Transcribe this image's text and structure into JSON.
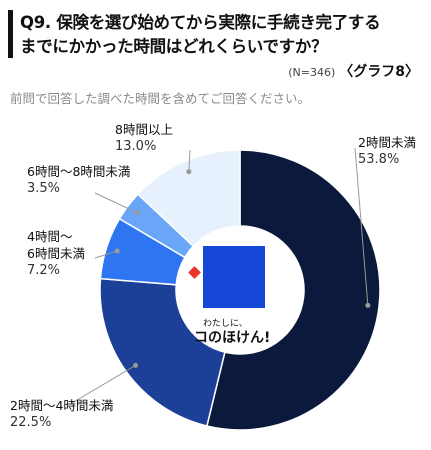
{
  "header": {
    "question_line1": "Q9. 保険を選び始めてから実際に手続き完了する",
    "question_line2": "までにかかった時間はどれくらいですか？",
    "sample_size": "(N=346)",
    "graph_label": "〈グラフ8〉",
    "note": "前問で回答した調べた時間を含めてご回答ください。"
  },
  "logo": {
    "subtitle": "わたしに、",
    "name": "コのほけん!"
  },
  "colors": {
    "slices": [
      "#0b1a3c",
      "#1c3f98",
      "#2f74f0",
      "#6aa6f8",
      "#e7f0fd"
    ],
    "leader": "#999999"
  },
  "chart_data": {
    "type": "pie",
    "donut": true,
    "categories": [
      "2時間未満",
      "2時間〜4時間未満",
      "4時間〜6時間未満",
      "6時間〜8時間未満",
      "8時間以上"
    ],
    "values": [
      53.8,
      22.5,
      7.2,
      3.5,
      13.0
    ],
    "labels": [
      {
        "name": "2時間未満",
        "value": "53.8%"
      },
      {
        "name": "2時間〜4時間未満",
        "value": "22.5%"
      },
      {
        "name_line1": "4時間〜",
        "name_line2": "6時間未満",
        "value": "7.2%"
      },
      {
        "name": "6時間〜8時間未満",
        "value": "3.5%"
      },
      {
        "name": "8時間以上",
        "value": "13.0%"
      }
    ]
  }
}
